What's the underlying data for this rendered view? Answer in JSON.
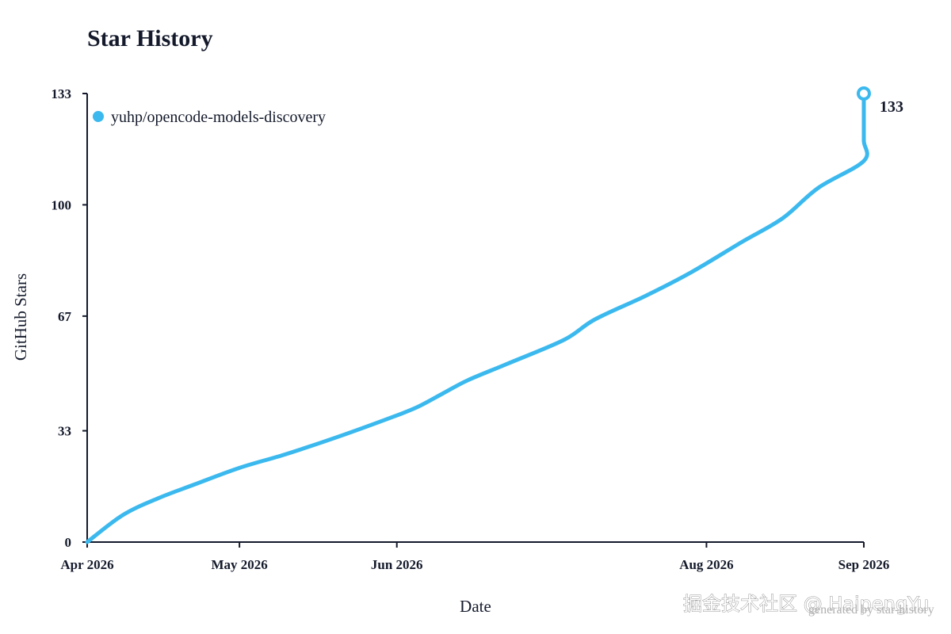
{
  "chart_data": {
    "type": "line",
    "title": "Star History",
    "xlabel": "Date",
    "ylabel": "GitHub Stars",
    "x_ticks": [
      {
        "label": "Apr 2026",
        "date": "2026-04-01"
      },
      {
        "label": "May 2026",
        "date": "2026-05-01"
      },
      {
        "label": "Jun 2026",
        "date": "2026-06-01"
      },
      {
        "label": "Aug 2026",
        "date": "2026-08-01"
      },
      {
        "label": "Sep 2026",
        "date": "2026-09-01"
      }
    ],
    "y_ticks": [
      0,
      33,
      67,
      100,
      133
    ],
    "ylim": [
      0,
      133
    ],
    "legend_position": "top-left",
    "grid": false,
    "series": [
      {
        "name": "yuhp/opencode-models-discovery",
        "color": "#3bb9ee",
        "points": [
          {
            "x": "2026-04-01",
            "y": 0
          },
          {
            "x": "2026-04-08",
            "y": 8
          },
          {
            "x": "2026-04-15",
            "y": 13
          },
          {
            "x": "2026-04-22",
            "y": 17
          },
          {
            "x": "2026-05-01",
            "y": 22
          },
          {
            "x": "2026-05-10",
            "y": 26
          },
          {
            "x": "2026-05-20",
            "y": 31
          },
          {
            "x": "2026-05-31",
            "y": 37
          },
          {
            "x": "2026-06-05",
            "y": 40
          },
          {
            "x": "2026-06-10",
            "y": 44
          },
          {
            "x": "2026-06-15",
            "y": 48
          },
          {
            "x": "2026-06-23",
            "y": 53
          },
          {
            "x": "2026-07-04",
            "y": 60
          },
          {
            "x": "2026-07-10",
            "y": 66
          },
          {
            "x": "2026-07-20",
            "y": 73
          },
          {
            "x": "2026-07-29",
            "y": 80
          },
          {
            "x": "2026-08-08",
            "y": 89
          },
          {
            "x": "2026-08-16",
            "y": 96
          },
          {
            "x": "2026-08-23",
            "y": 105
          },
          {
            "x": "2026-09-01",
            "y": 113
          },
          {
            "x": "2026-09-10",
            "y": 119
          },
          {
            "x": "2026-09-20",
            "y": 126
          },
          {
            "x": "2026-09-30",
            "y": 133
          }
        ],
        "end_value": "133"
      }
    ]
  },
  "watermark": "掘金技术社区 @ HaipengYu",
  "credit": "generated by star-history"
}
